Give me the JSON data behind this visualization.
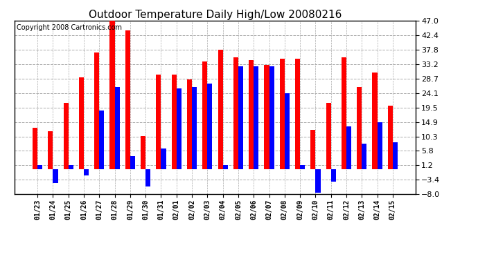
{
  "title": "Outdoor Temperature Daily High/Low 20080216",
  "copyright": "Copyright 2008 Cartronics.com",
  "dates": [
    "01/23",
    "01/24",
    "01/25",
    "01/26",
    "01/27",
    "01/28",
    "01/29",
    "01/30",
    "01/31",
    "02/01",
    "02/02",
    "02/03",
    "02/04",
    "02/05",
    "02/06",
    "02/07",
    "02/08",
    "02/09",
    "02/10",
    "02/11",
    "02/12",
    "02/13",
    "02/14",
    "02/15"
  ],
  "highs": [
    13.0,
    12.0,
    21.0,
    29.0,
    37.0,
    47.0,
    44.0,
    10.5,
    30.0,
    30.0,
    28.5,
    34.0,
    37.8,
    35.5,
    34.5,
    33.0,
    35.0,
    35.0,
    12.5,
    21.0,
    35.5,
    26.0,
    30.5,
    20.0
  ],
  "lows": [
    1.2,
    -4.5,
    1.2,
    -2.0,
    18.5,
    26.0,
    4.0,
    -5.5,
    6.5,
    25.5,
    26.0,
    27.0,
    1.2,
    32.5,
    32.5,
    32.5,
    24.0,
    1.2,
    -7.5,
    -4.0,
    13.5,
    8.0,
    14.9,
    8.5
  ],
  "high_color": "#ff0000",
  "low_color": "#0000ff",
  "bg_color": "#ffffff",
  "plot_bg_color": "#ffffff",
  "grid_color": "#aaaaaa",
  "ylim": [
    -8.0,
    47.0
  ],
  "yticks": [
    -8.0,
    -3.4,
    1.2,
    5.8,
    10.3,
    14.9,
    19.5,
    24.1,
    28.7,
    33.2,
    37.8,
    42.4,
    47.0
  ],
  "ylabel_fontsize": 8,
  "title_fontsize": 11,
  "copyright_fontsize": 7,
  "bar_width": 0.32
}
